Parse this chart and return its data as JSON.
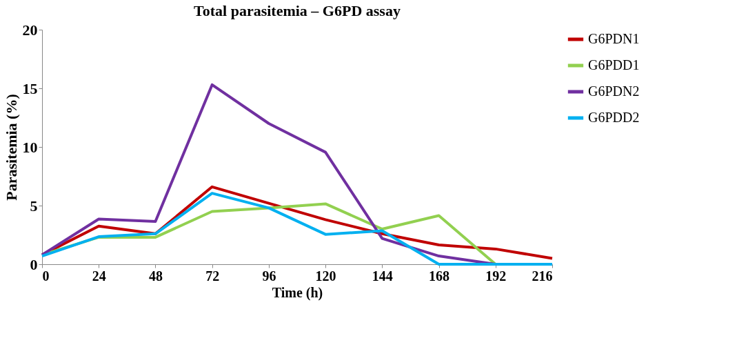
{
  "chart_data": {
    "type": "line",
    "title": "Total parasitemia – G6PD assay",
    "xlabel": "Time (h)",
    "ylabel": "Parasitemia (%)",
    "x": [
      0,
      24,
      48,
      72,
      96,
      120,
      144,
      168,
      192,
      216
    ],
    "xlim": [
      0,
      216
    ],
    "xticks": [
      0,
      24,
      48,
      72,
      96,
      120,
      144,
      168,
      192,
      216
    ],
    "ylim": [
      0,
      20
    ],
    "yticks": [
      0,
      5,
      10,
      15,
      20
    ],
    "grid": false,
    "legend": "right",
    "marker": "none",
    "line_style": "solid",
    "series": [
      {
        "name": "G6PDN1",
        "color": "#c00000",
        "values": [
          0.8,
          3.25,
          2.6,
          6.6,
          5.2,
          3.8,
          2.6,
          1.65,
          1.3,
          0.5
        ]
      },
      {
        "name": "G6PDD1",
        "color": "#92d050",
        "values": [
          0.8,
          2.3,
          2.3,
          4.5,
          4.8,
          5.15,
          3.0,
          4.15,
          0,
          null
        ]
      },
      {
        "name": "G6PDN2",
        "color": "#7030a0",
        "values": [
          0.8,
          3.85,
          3.65,
          15.3,
          12.0,
          9.55,
          2.2,
          0.7,
          0,
          0
        ]
      },
      {
        "name": "G6PDD2",
        "color": "#00b0f0",
        "values": [
          0.7,
          2.35,
          2.6,
          6.05,
          4.8,
          2.55,
          2.85,
          0,
          0,
          0
        ]
      }
    ]
  }
}
